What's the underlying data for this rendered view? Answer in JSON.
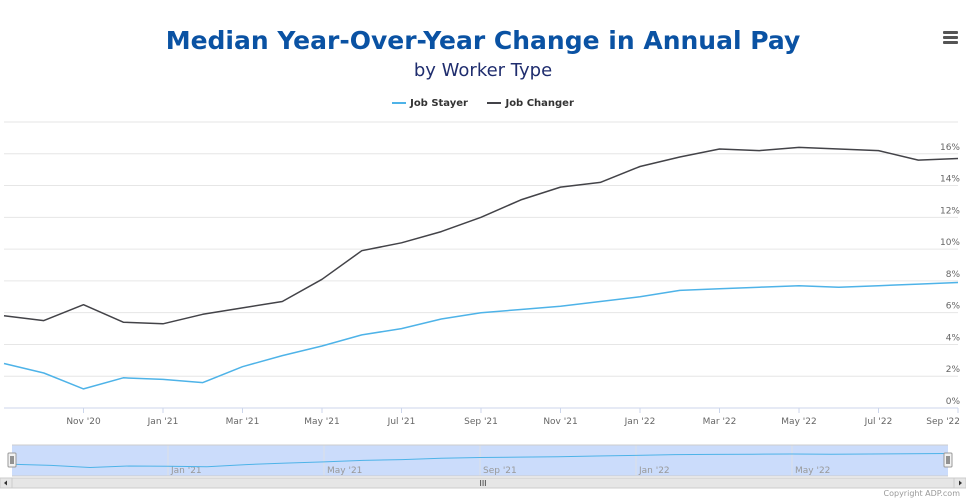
{
  "title": "Median Year-Over-Year Change in Annual Pay",
  "subtitle": "by Worker Type",
  "menu_icon": "hamburger-menu-icon",
  "credit": "Copyright ADP.com",
  "colors": {
    "job_stayer": "#4eb3e8",
    "job_changer": "#434348",
    "navigator_fill": "#c5d8fb"
  },
  "chart_data": {
    "type": "line",
    "x": [
      "2020-09",
      "2020-10",
      "2020-11",
      "2020-12",
      "2021-01",
      "2021-02",
      "2021-03",
      "2021-04",
      "2021-05",
      "2021-06",
      "2021-07",
      "2021-08",
      "2021-09",
      "2021-10",
      "2021-11",
      "2021-12",
      "2022-01",
      "2022-02",
      "2022-03",
      "2022-04",
      "2022-05",
      "2022-06",
      "2022-07",
      "2022-08",
      "2022-09"
    ],
    "series": [
      {
        "name": "Job Stayer",
        "values": [
          2.8,
          2.2,
          1.2,
          1.9,
          1.8,
          1.6,
          2.6,
          3.3,
          3.9,
          4.6,
          5.0,
          5.6,
          6.0,
          6.2,
          6.4,
          6.7,
          7.0,
          7.4,
          7.5,
          7.6,
          7.7,
          7.6,
          7.7,
          7.8,
          7.9
        ]
      },
      {
        "name": "Job Changer",
        "values": [
          5.8,
          5.5,
          6.5,
          5.4,
          5.3,
          5.9,
          6.3,
          6.7,
          8.1,
          9.9,
          10.4,
          11.1,
          12.0,
          13.1,
          13.9,
          14.2,
          15.2,
          15.8,
          16.3,
          16.2,
          16.4,
          16.3,
          16.2,
          15.6,
          15.7
        ]
      }
    ],
    "x_tick_labels": [
      "Nov '20",
      "Jan '21",
      "Mar '21",
      "May '21",
      "Jul '21",
      "Sep '21",
      "Nov '21",
      "Jan '22",
      "Mar '22",
      "May '22",
      "Jul '22",
      "Sep '22"
    ],
    "y_tick_labels": [
      "0%",
      "2%",
      "4%",
      "6%",
      "8%",
      "10%",
      "12%",
      "14%",
      "16%"
    ],
    "ylim": [
      0,
      18
    ],
    "y_axis_side": "right",
    "grid": true,
    "legend": "top-center",
    "navigator": {
      "tick_labels": [
        "Jan '21",
        "May '21",
        "Sep '21",
        "Jan '22",
        "May '22"
      ],
      "series": "Job Stayer",
      "scroll_grip": "III"
    }
  }
}
